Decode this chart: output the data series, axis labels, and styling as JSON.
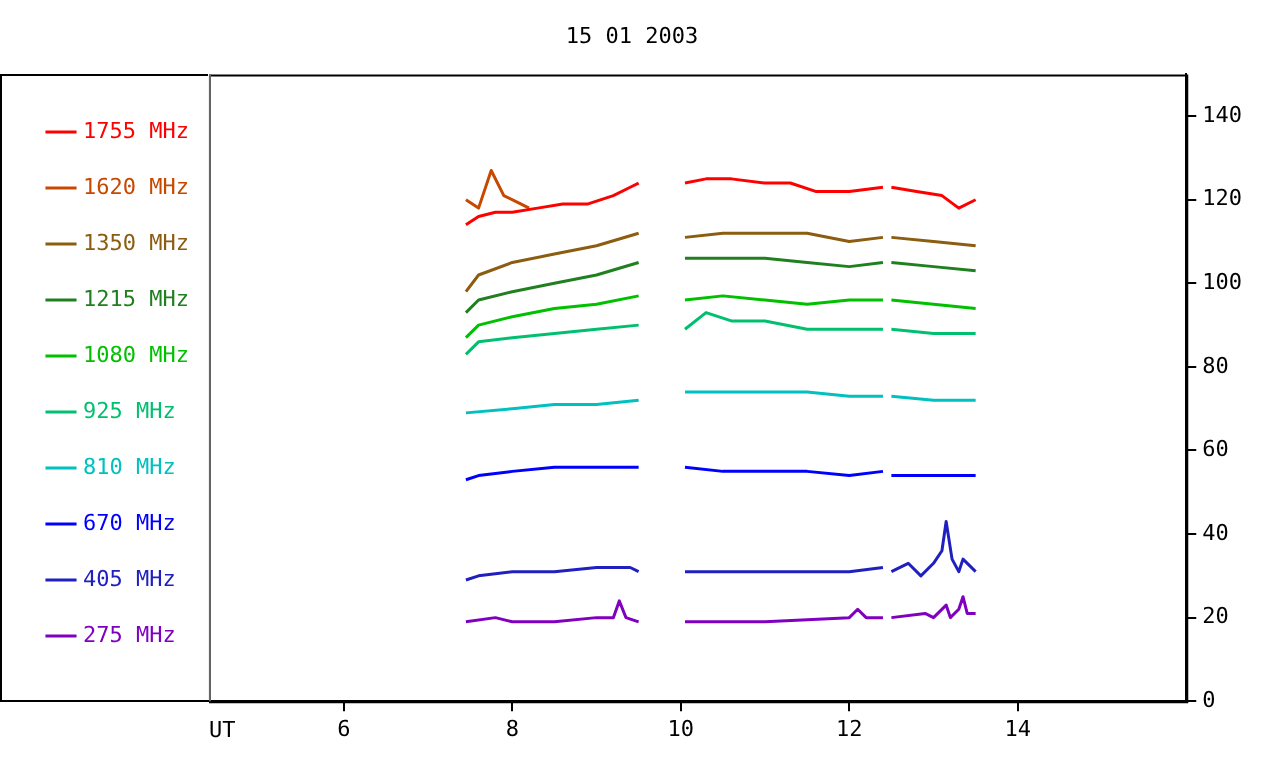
{
  "chart_data": {
    "type": "line",
    "title": "15 01 2003",
    "xlabel": "UT",
    "xlim": [
      4.4,
      16
    ],
    "xticks": [
      6,
      8,
      10,
      12,
      14
    ],
    "ylim": [
      0,
      150
    ],
    "yticks": [
      0,
      20,
      40,
      60,
      80,
      100,
      120,
      140
    ],
    "grid": false,
    "legend": "left",
    "marker": "none",
    "line_style": "solid",
    "series": [
      {
        "name": "1755 MHz",
        "color": "#ff0000",
        "x": [
          7.45,
          7.6,
          7.8,
          8,
          8.3,
          8.6,
          8.9,
          9.2,
          9.4,
          9.5,
          9.75,
          10.05,
          10.3,
          10.6,
          11,
          11.3,
          11.6,
          12,
          12.4,
          12.45,
          12.5,
          12.8,
          13.1,
          13.3,
          13.5
        ],
        "values": [
          114,
          116,
          117,
          117,
          118,
          119,
          119,
          121,
          123,
          124,
          null,
          124,
          125,
          125,
          124,
          124,
          122,
          122,
          123,
          null,
          123,
          122,
          121,
          118,
          120
        ]
      },
      {
        "name": "1620 MHz",
        "color": "#c84800",
        "x": [
          7.45,
          7.6,
          7.75,
          7.9,
          8.1,
          8.2
        ],
        "values": [
          120,
          118,
          127,
          121,
          119,
          118
        ]
      },
      {
        "name": "1350 MHz",
        "color": "#8c5c10",
        "x": [
          7.45,
          7.6,
          8,
          8.5,
          9,
          9.5,
          9.75,
          10.05,
          10.5,
          11,
          11.5,
          12,
          12.4,
          12.45,
          12.5,
          13,
          13.5
        ],
        "values": [
          98,
          102,
          105,
          107,
          109,
          112,
          null,
          111,
          112,
          112,
          112,
          110,
          111,
          null,
          111,
          110,
          109
        ]
      },
      {
        "name": "1215 MHz",
        "color": "#208020",
        "x": [
          7.45,
          7.6,
          8,
          8.5,
          9,
          9.5,
          9.75,
          10.05,
          10.5,
          11,
          11.5,
          12,
          12.4,
          12.45,
          12.5,
          13,
          13.5
        ],
        "values": [
          93,
          96,
          98,
          100,
          102,
          105,
          null,
          106,
          106,
          106,
          105,
          104,
          105,
          null,
          105,
          104,
          103
        ]
      },
      {
        "name": "1080 MHz",
        "color": "#00c000",
        "x": [
          7.45,
          7.6,
          8,
          8.5,
          9,
          9.5,
          9.75,
          10.05,
          10.5,
          11,
          11.5,
          12,
          12.4,
          12.45,
          12.5,
          13,
          13.5
        ],
        "values": [
          87,
          90,
          92,
          94,
          95,
          97,
          null,
          96,
          97,
          96,
          95,
          96,
          96,
          null,
          96,
          95,
          94
        ]
      },
      {
        "name": "925 MHz",
        "color": "#00c070",
        "x": [
          7.45,
          7.6,
          8,
          8.5,
          9,
          9.5,
          9.75,
          10.05,
          10.3,
          10.6,
          11,
          11.5,
          12,
          12.4,
          12.45,
          12.5,
          13,
          13.5
        ],
        "values": [
          83,
          86,
          87,
          88,
          89,
          90,
          null,
          89,
          93,
          91,
          91,
          89,
          89,
          89,
          null,
          89,
          88,
          88
        ]
      },
      {
        "name": "810 MHz",
        "color": "#00c0c0",
        "x": [
          7.45,
          8,
          8.5,
          9,
          9.5,
          9.75,
          10.05,
          10.5,
          11,
          11.5,
          12,
          12.4,
          12.45,
          12.5,
          13,
          13.5
        ],
        "values": [
          69,
          70,
          71,
          71,
          72,
          null,
          74,
          74,
          74,
          74,
          73,
          73,
          null,
          73,
          72,
          72
        ]
      },
      {
        "name": "670 MHz",
        "color": "#0000ff",
        "x": [
          7.45,
          7.6,
          8,
          8.5,
          9,
          9.5,
          9.75,
          10.05,
          10.5,
          11,
          11.5,
          12,
          12.4,
          12.45,
          12.5,
          13,
          13.5
        ],
        "values": [
          53,
          54,
          55,
          56,
          56,
          56,
          null,
          56,
          55,
          55,
          55,
          54,
          55,
          null,
          54,
          54,
          54
        ]
      },
      {
        "name": "405 MHz",
        "color": "#2020c0",
        "x": [
          7.45,
          7.6,
          8,
          8.5,
          9,
          9.4,
          9.5,
          9.75,
          10.05,
          10.5,
          11,
          11.5,
          12,
          12.4,
          12.45,
          12.5,
          12.7,
          12.85,
          13,
          13.1,
          13.15,
          13.22,
          13.3,
          13.35,
          13.5
        ],
        "values": [
          29,
          30,
          31,
          31,
          32,
          32,
          31,
          null,
          31,
          31,
          31,
          31,
          31,
          32,
          null,
          31,
          33,
          30,
          33,
          36,
          43,
          34,
          31,
          34,
          31
        ]
      },
      {
        "name": "275 MHz",
        "color": "#8000c0",
        "x": [
          7.45,
          7.8,
          8,
          8.5,
          9,
          9.2,
          9.27,
          9.35,
          9.5,
          9.75,
          10.05,
          11,
          12,
          12.1,
          12.2,
          12.4,
          12.45,
          12.5,
          12.9,
          13,
          13.15,
          13.2,
          13.3,
          13.35,
          13.4,
          13.5
        ],
        "values": [
          19,
          20,
          19,
          19,
          20,
          20,
          24,
          20,
          19,
          null,
          19,
          19,
          20,
          22,
          20,
          20,
          null,
          20,
          21,
          20,
          23,
          20,
          22,
          25,
          21,
          21
        ]
      }
    ]
  }
}
